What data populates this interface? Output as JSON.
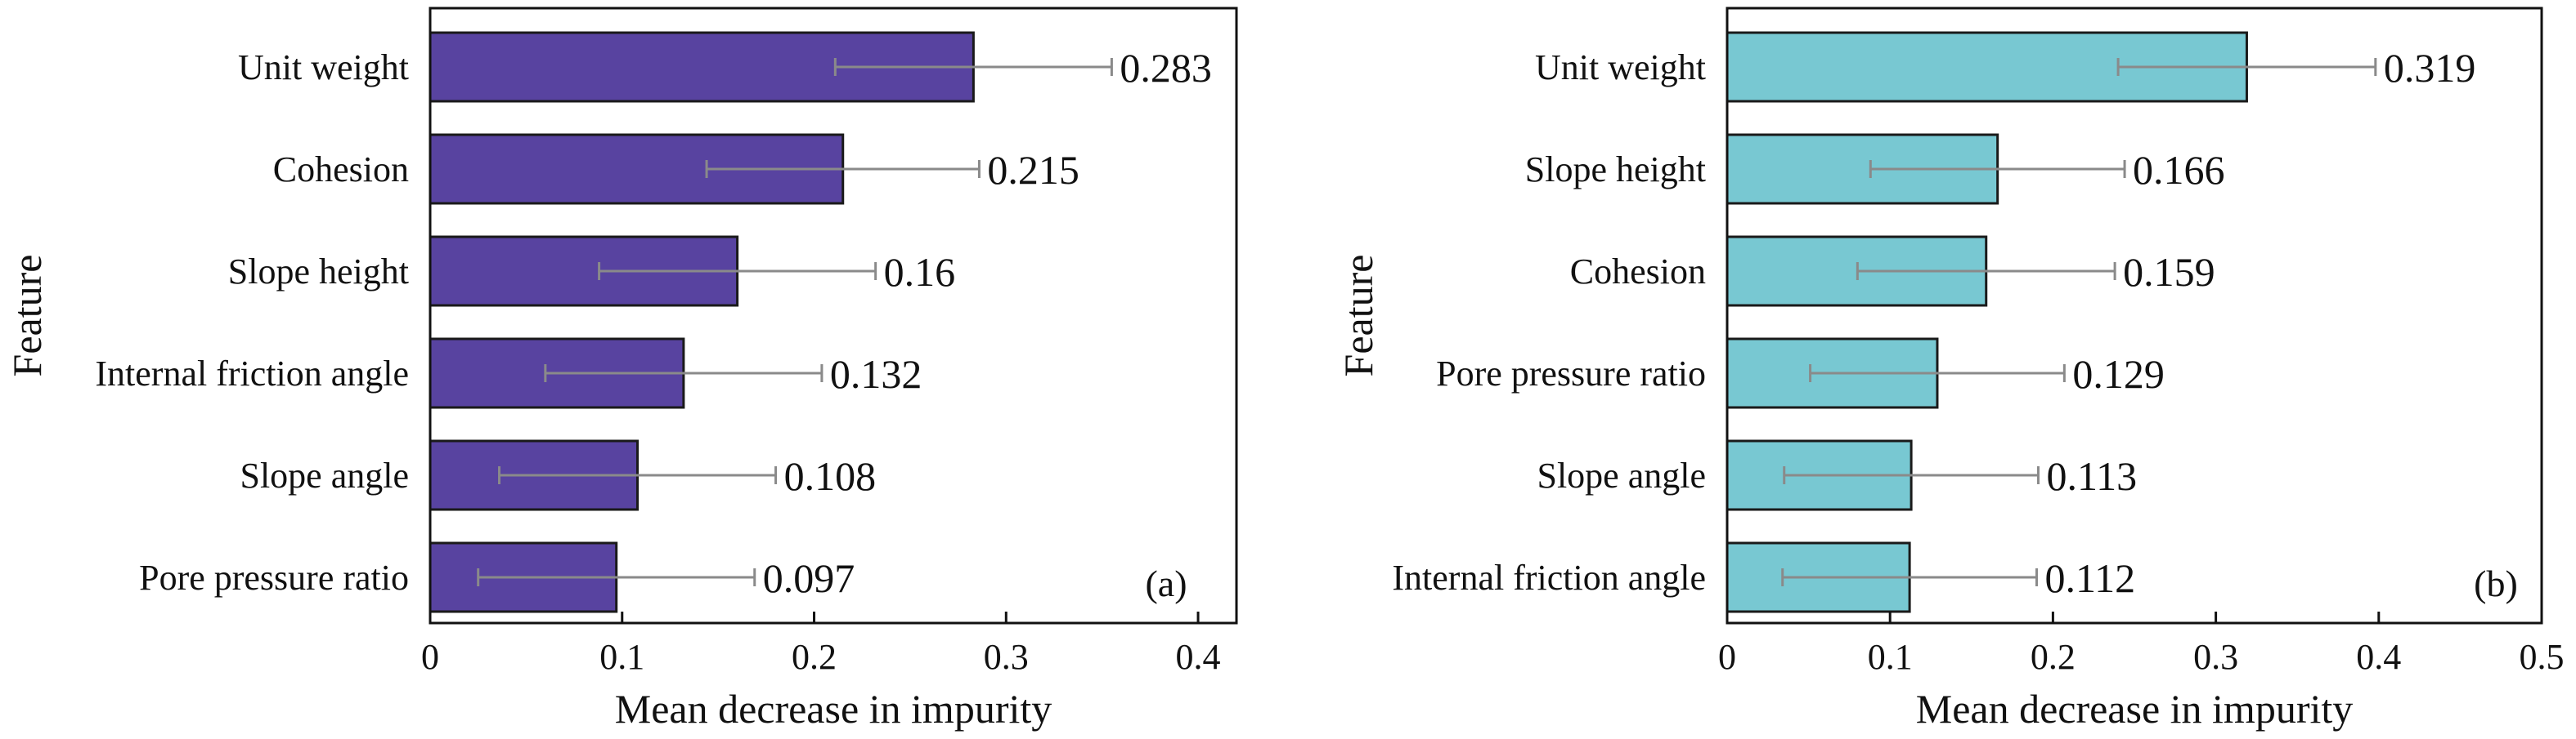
{
  "chart_data": [
    {
      "type": "bar",
      "orientation": "horizontal",
      "panel_label": "(a)",
      "xlabel": "Mean decrease in impurity",
      "ylabel": "Feature",
      "xlim": [
        0,
        0.42
      ],
      "xticks": [
        0,
        0.1,
        0.2,
        0.3,
        0.4
      ],
      "xtick_labels": [
        "0",
        "0.1",
        "0.2",
        "0.3",
        "0.4"
      ],
      "grid": false,
      "bar_color": "#5843a0",
      "categories": [
        "Unit weight",
        "Cohesion",
        "Slope height",
        "Internal friction angle",
        "Slope angle",
        "Pore pressure ratio"
      ],
      "values": [
        0.283,
        0.215,
        0.16,
        0.132,
        0.108,
        0.097
      ],
      "value_labels": [
        "0.283",
        "0.215",
        "0.16",
        "0.132",
        "0.108",
        "0.097"
      ],
      "error_low": [
        0.211,
        0.144,
        0.088,
        0.06,
        0.036,
        0.025
      ],
      "error_high": [
        0.355,
        0.286,
        0.232,
        0.204,
        0.18,
        0.169
      ]
    },
    {
      "type": "bar",
      "orientation": "horizontal",
      "panel_label": "(b)",
      "xlabel": "Mean decrease in impurity",
      "ylabel": "Feature",
      "xlim": [
        0,
        0.5
      ],
      "xticks": [
        0,
        0.1,
        0.2,
        0.3,
        0.4,
        0.5
      ],
      "xtick_labels": [
        "0",
        "0.1",
        "0.2",
        "0.3",
        "0.4",
        "0.5"
      ],
      "grid": false,
      "bar_color": "#78c8d2",
      "categories": [
        "Unit weight",
        "Slope height",
        "Cohesion",
        "Pore pressure ratio",
        "Slope angle",
        "Internal friction angle"
      ],
      "values": [
        0.319,
        0.166,
        0.159,
        0.129,
        0.113,
        0.112
      ],
      "value_labels": [
        "0.319",
        "0.166",
        "0.159",
        "0.129",
        "0.113",
        "0.112"
      ],
      "error_low": [
        0.24,
        0.088,
        0.08,
        0.051,
        0.035,
        0.034
      ],
      "error_high": [
        0.398,
        0.244,
        0.238,
        0.207,
        0.191,
        0.19
      ]
    }
  ]
}
